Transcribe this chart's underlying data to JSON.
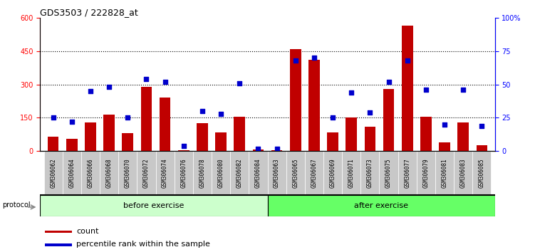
{
  "title": "GDS3503 / 222828_at",
  "categories": [
    "GSM306062",
    "GSM306064",
    "GSM306066",
    "GSM306068",
    "GSM306070",
    "GSM306072",
    "GSM306074",
    "GSM306076",
    "GSM306078",
    "GSM306080",
    "GSM306082",
    "GSM306084",
    "GSM306063",
    "GSM306065",
    "GSM306067",
    "GSM306069",
    "GSM306071",
    "GSM306073",
    "GSM306075",
    "GSM306077",
    "GSM306079",
    "GSM306081",
    "GSM306083",
    "GSM306085"
  ],
  "bar_values": [
    65,
    55,
    130,
    165,
    80,
    290,
    240,
    5,
    125,
    85,
    155,
    8,
    5,
    460,
    410,
    85,
    150,
    110,
    280,
    565,
    155,
    40,
    130,
    28
  ],
  "dot_values": [
    25,
    22,
    45,
    48,
    25,
    54,
    52,
    4,
    30,
    28,
    51,
    2,
    2,
    68,
    70,
    25,
    44,
    29,
    52,
    68,
    46,
    20,
    46,
    19
  ],
  "before_exercise_count": 12,
  "after_exercise_count": 12,
  "left_ylim": [
    0,
    600
  ],
  "right_ylim": [
    0,
    100
  ],
  "left_yticks": [
    0,
    150,
    300,
    450,
    600
  ],
  "right_yticks": [
    0,
    25,
    50,
    75,
    100
  ],
  "bar_color": "#C00000",
  "dot_color": "#0000CC",
  "before_color": "#CCFFCC",
  "after_color": "#66FF66",
  "label_bg_color": "#C8C8C8",
  "title_fontsize": 9,
  "tick_fontsize": 7,
  "legend_fontsize": 8,
  "fig_width": 7.51,
  "fig_height": 3.54
}
